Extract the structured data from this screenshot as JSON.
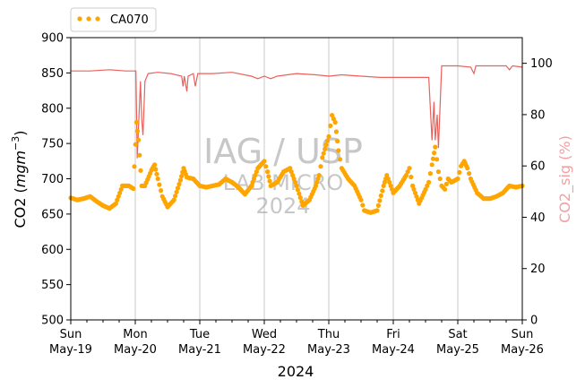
{
  "chart_data": {
    "type": "scatter",
    "legend": {
      "label": "CA070",
      "placement": "top-left, above plot"
    },
    "xlabel": "2024",
    "ylabel_left": "CO2 (mgm⁻³)",
    "ylabel_left_text": "CO2 (",
    "ylabel_left_unit": "mgm",
    "ylabel_left_exp": "−3",
    "ylabel_left_close": ")",
    "ylabel_right": "CO2_sig (%)",
    "ylim_left": [
      500,
      900
    ],
    "ylim_right": [
      0,
      110
    ],
    "xlim_days": [
      0,
      7
    ],
    "x_ticks": [
      {
        "day": "Sun",
        "date": "May-19"
      },
      {
        "day": "Mon",
        "date": "May-20"
      },
      {
        "day": "Tue",
        "date": "May-21"
      },
      {
        "day": "Wed",
        "date": "May-22"
      },
      {
        "day": "Thu",
        "date": "May-23"
      },
      {
        "day": "Fri",
        "date": "May-24"
      },
      {
        "day": "Sat",
        "date": "May-25"
      },
      {
        "day": "Sun",
        "date": "May-26"
      }
    ],
    "y_ticks_left": [
      500,
      550,
      600,
      650,
      700,
      750,
      800,
      850,
      900
    ],
    "y_ticks_right": [
      0,
      20,
      40,
      60,
      80,
      100
    ],
    "grid": "vertical lines at day ticks",
    "watermark": {
      "line1": "IAG / USP",
      "line2": "LAB MICRO",
      "line3": "2024"
    },
    "colors": {
      "co2": "#ffa500",
      "sig": "#e8504a",
      "sig_label": "#f4a0a0",
      "grid": "#c8c8c8"
    },
    "co2_series": {
      "name": "CA070",
      "points": [
        [
          0.0,
          673
        ],
        [
          0.1,
          670
        ],
        [
          0.2,
          672
        ],
        [
          0.3,
          675
        ],
        [
          0.4,
          668
        ],
        [
          0.5,
          662
        ],
        [
          0.6,
          658
        ],
        [
          0.7,
          665
        ],
        [
          0.8,
          690
        ],
        [
          0.9,
          690
        ],
        [
          0.97,
          686
        ],
        [
          1.02,
          780
        ],
        [
          1.05,
          755
        ],
        [
          1.1,
          690
        ],
        [
          1.15,
          690
        ],
        [
          1.25,
          712
        ],
        [
          1.3,
          720
        ],
        [
          1.35,
          700
        ],
        [
          1.42,
          675
        ],
        [
          1.5,
          660
        ],
        [
          1.6,
          670
        ],
        [
          1.7,
          698
        ],
        [
          1.75,
          715
        ],
        [
          1.8,
          702
        ],
        [
          1.9,
          700
        ],
        [
          2.0,
          690
        ],
        [
          2.1,
          688
        ],
        [
          2.2,
          690
        ],
        [
          2.3,
          692
        ],
        [
          2.4,
          700
        ],
        [
          2.5,
          695
        ],
        [
          2.6,
          688
        ],
        [
          2.7,
          678
        ],
        [
          2.8,
          690
        ],
        [
          2.9,
          715
        ],
        [
          3.0,
          725
        ],
        [
          3.05,
          710
        ],
        [
          3.1,
          690
        ],
        [
          3.2,
          695
        ],
        [
          3.3,
          710
        ],
        [
          3.4,
          715
        ],
        [
          3.5,
          690
        ],
        [
          3.6,
          662
        ],
        [
          3.7,
          670
        ],
        [
          3.8,
          690
        ],
        [
          3.85,
          705
        ],
        [
          3.9,
          730
        ],
        [
          4.0,
          760
        ],
        [
          4.05,
          790
        ],
        [
          4.1,
          780
        ],
        [
          4.15,
          740
        ],
        [
          4.2,
          715
        ],
        [
          4.3,
          700
        ],
        [
          4.4,
          690
        ],
        [
          4.5,
          670
        ],
        [
          4.55,
          655
        ],
        [
          4.65,
          652
        ],
        [
          4.75,
          655
        ],
        [
          4.85,
          690
        ],
        [
          4.9,
          705
        ],
        [
          5.0,
          680
        ],
        [
          5.1,
          690
        ],
        [
          5.2,
          705
        ],
        [
          5.25,
          715
        ],
        [
          5.3,
          690
        ],
        [
          5.4,
          665
        ],
        [
          5.5,
          685
        ],
        [
          5.55,
          695
        ],
        [
          5.6,
          720
        ],
        [
          5.65,
          745
        ],
        [
          5.7,
          710
        ],
        [
          5.75,
          690
        ],
        [
          5.8,
          685
        ],
        [
          5.85,
          700
        ],
        [
          5.9,
          695
        ],
        [
          6.0,
          700
        ],
        [
          6.05,
          718
        ],
        [
          6.1,
          725
        ],
        [
          6.15,
          715
        ],
        [
          6.2,
          700
        ],
        [
          6.3,
          680
        ],
        [
          6.4,
          672
        ],
        [
          6.5,
          672
        ],
        [
          6.6,
          675
        ],
        [
          6.7,
          680
        ],
        [
          6.8,
          690
        ],
        [
          6.9,
          688
        ],
        [
          7.0,
          690
        ]
      ]
    },
    "sig_series": {
      "name": "CO2_sig",
      "points": [
        [
          0.0,
          97
        ],
        [
          0.3,
          97
        ],
        [
          0.6,
          97.5
        ],
        [
          0.85,
          97
        ],
        [
          1.01,
          97
        ],
        [
          1.03,
          63
        ],
        [
          1.05,
          75
        ],
        [
          1.08,
          93
        ],
        [
          1.1,
          78
        ],
        [
          1.12,
          72
        ],
        [
          1.15,
          93
        ],
        [
          1.2,
          96
        ],
        [
          1.35,
          96.5
        ],
        [
          1.55,
          96
        ],
        [
          1.72,
          95
        ],
        [
          1.74,
          91
        ],
        [
          1.76,
          95
        ],
        [
          1.8,
          89
        ],
        [
          1.82,
          95
        ],
        [
          1.9,
          96
        ],
        [
          1.93,
          91
        ],
        [
          1.97,
          96
        ],
        [
          2.2,
          96
        ],
        [
          2.5,
          96.5
        ],
        [
          2.8,
          95
        ],
        [
          2.9,
          94
        ],
        [
          3.0,
          95
        ],
        [
          3.1,
          94
        ],
        [
          3.2,
          95
        ],
        [
          3.5,
          96
        ],
        [
          3.8,
          95.5
        ],
        [
          4.0,
          95
        ],
        [
          4.2,
          95.5
        ],
        [
          4.5,
          95
        ],
        [
          4.8,
          94.5
        ],
        [
          5.0,
          94.5
        ],
        [
          5.3,
          94.5
        ],
        [
          5.55,
          94.5
        ],
        [
          5.6,
          70
        ],
        [
          5.63,
          85
        ],
        [
          5.65,
          70
        ],
        [
          5.68,
          80
        ],
        [
          5.7,
          67
        ],
        [
          5.75,
          99
        ],
        [
          6.0,
          99
        ],
        [
          6.2,
          98.5
        ],
        [
          6.25,
          96
        ],
        [
          6.28,
          99
        ],
        [
          6.6,
          99
        ],
        [
          6.75,
          99
        ],
        [
          6.8,
          97.5
        ],
        [
          6.85,
          99
        ],
        [
          7.0,
          98.5
        ]
      ]
    }
  }
}
